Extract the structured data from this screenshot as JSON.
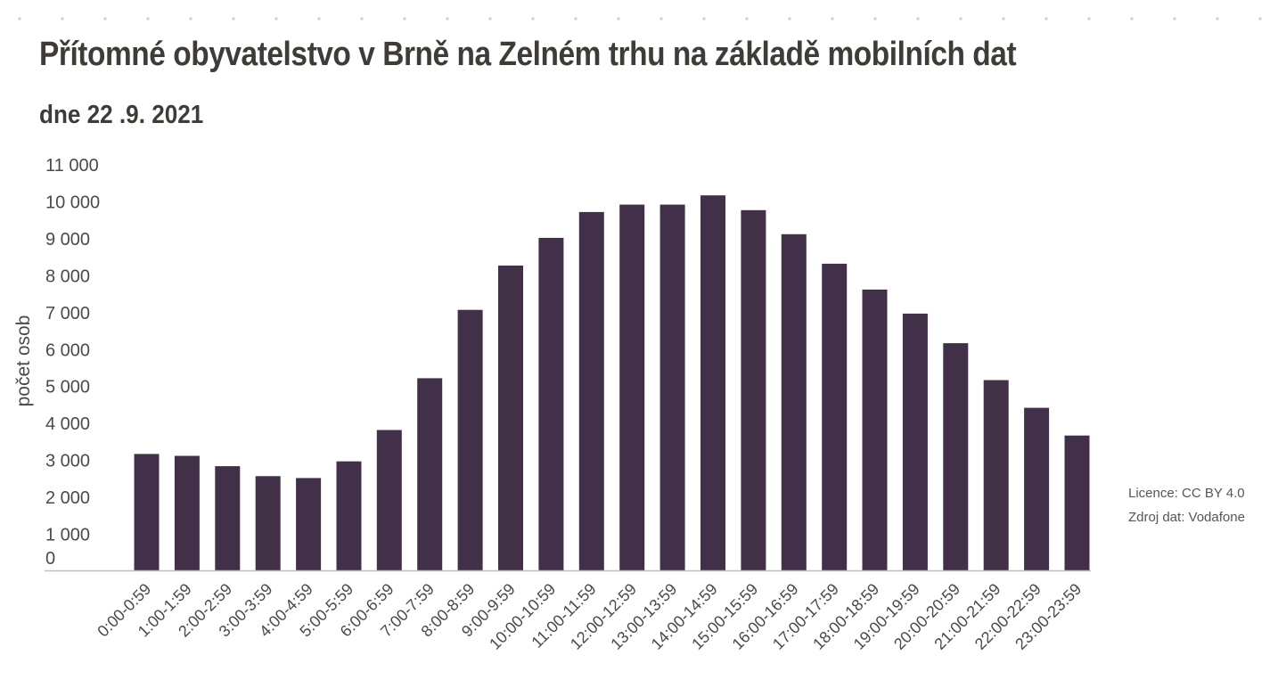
{
  "title": "Přítomné obyvatelstvo v Brně na Zelném trhu na základě mobilních dat",
  "subtitle": "dne 22 .9. 2021",
  "credits": {
    "license": "Licence: CC BY 4.0",
    "source": "Zdroj dat: Vodafone"
  },
  "colors": {
    "bar": "#413048",
    "axis": "#bfbfbf",
    "title": "#3f3c37",
    "text": "#4a4a4a"
  },
  "chart_data": {
    "type": "bar",
    "title": "Přítomné obyvatelstvo v Brně na Zelném trhu na základě mobilních dat",
    "subtitle": "dne 22 .9. 2021",
    "xlabel": "",
    "ylabel": "počet osob",
    "ylim": [
      0,
      11000
    ],
    "yticks": [
      0,
      1000,
      2000,
      3000,
      4000,
      5000,
      6000,
      7000,
      8000,
      9000,
      10000,
      11000
    ],
    "ytick_labels": [
      "0",
      "1 000",
      "2 000",
      "3 000",
      "4 000",
      "5 000",
      "6 000",
      "7 000",
      "8 000",
      "9 000",
      "10 000",
      "11 000"
    ],
    "grid": false,
    "legend": "none",
    "categories": [
      "0:00-0:59",
      "1:00-1:59",
      "2:00-2:59",
      "3:00-3:59",
      "4:00-4:59",
      "5:00-5:59",
      "6:00-6:59",
      "7:00-7:59",
      "8:00-8:59",
      "9:00-9:59",
      "10:00-10:59",
      "11:00-11:59",
      "12:00-12:59",
      "13:00-13:59",
      "14:00-14:59",
      "15:00-15:59",
      "16:00-16:59",
      "17:00-17:59",
      "18:00-18:59",
      "19:00-19:59",
      "20:00-20:59",
      "21:00-21:59",
      "22:00-22:59",
      "23:00-23:59"
    ],
    "values": [
      3150,
      3100,
      2820,
      2550,
      2500,
      2950,
      3800,
      5200,
      7050,
      8250,
      9000,
      9700,
      9900,
      9900,
      10150,
      9750,
      9100,
      8300,
      7600,
      6950,
      6150,
      5150,
      4400,
      3650
    ]
  }
}
